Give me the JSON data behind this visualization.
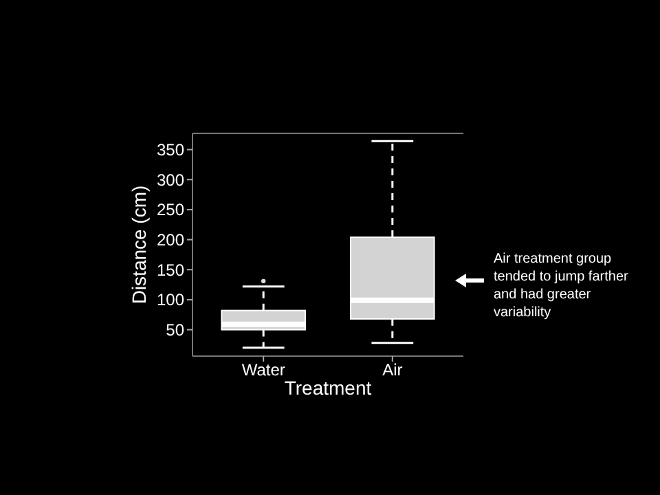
{
  "chart_data": {
    "type": "box",
    "xlabel": "Treatment",
    "ylabel": "Distance (cm)",
    "categories": [
      "Water",
      "Air"
    ],
    "boxes": [
      {
        "low": 20,
        "q1": 50,
        "median": 59,
        "q3": 82,
        "high": 122,
        "outliers": [
          131
        ]
      },
      {
        "low": 28,
        "q1": 68,
        "median": 99,
        "q3": 204,
        "high": 364
      }
    ],
    "color": "#d3d3d3",
    "ylim": [
      6,
      377
    ],
    "yticks": [
      50,
      100,
      150,
      200,
      250,
      300,
      350
    ],
    "grid": false,
    "annotations": [
      "Air treatment group tended to jump farther and had greater variability"
    ]
  }
}
